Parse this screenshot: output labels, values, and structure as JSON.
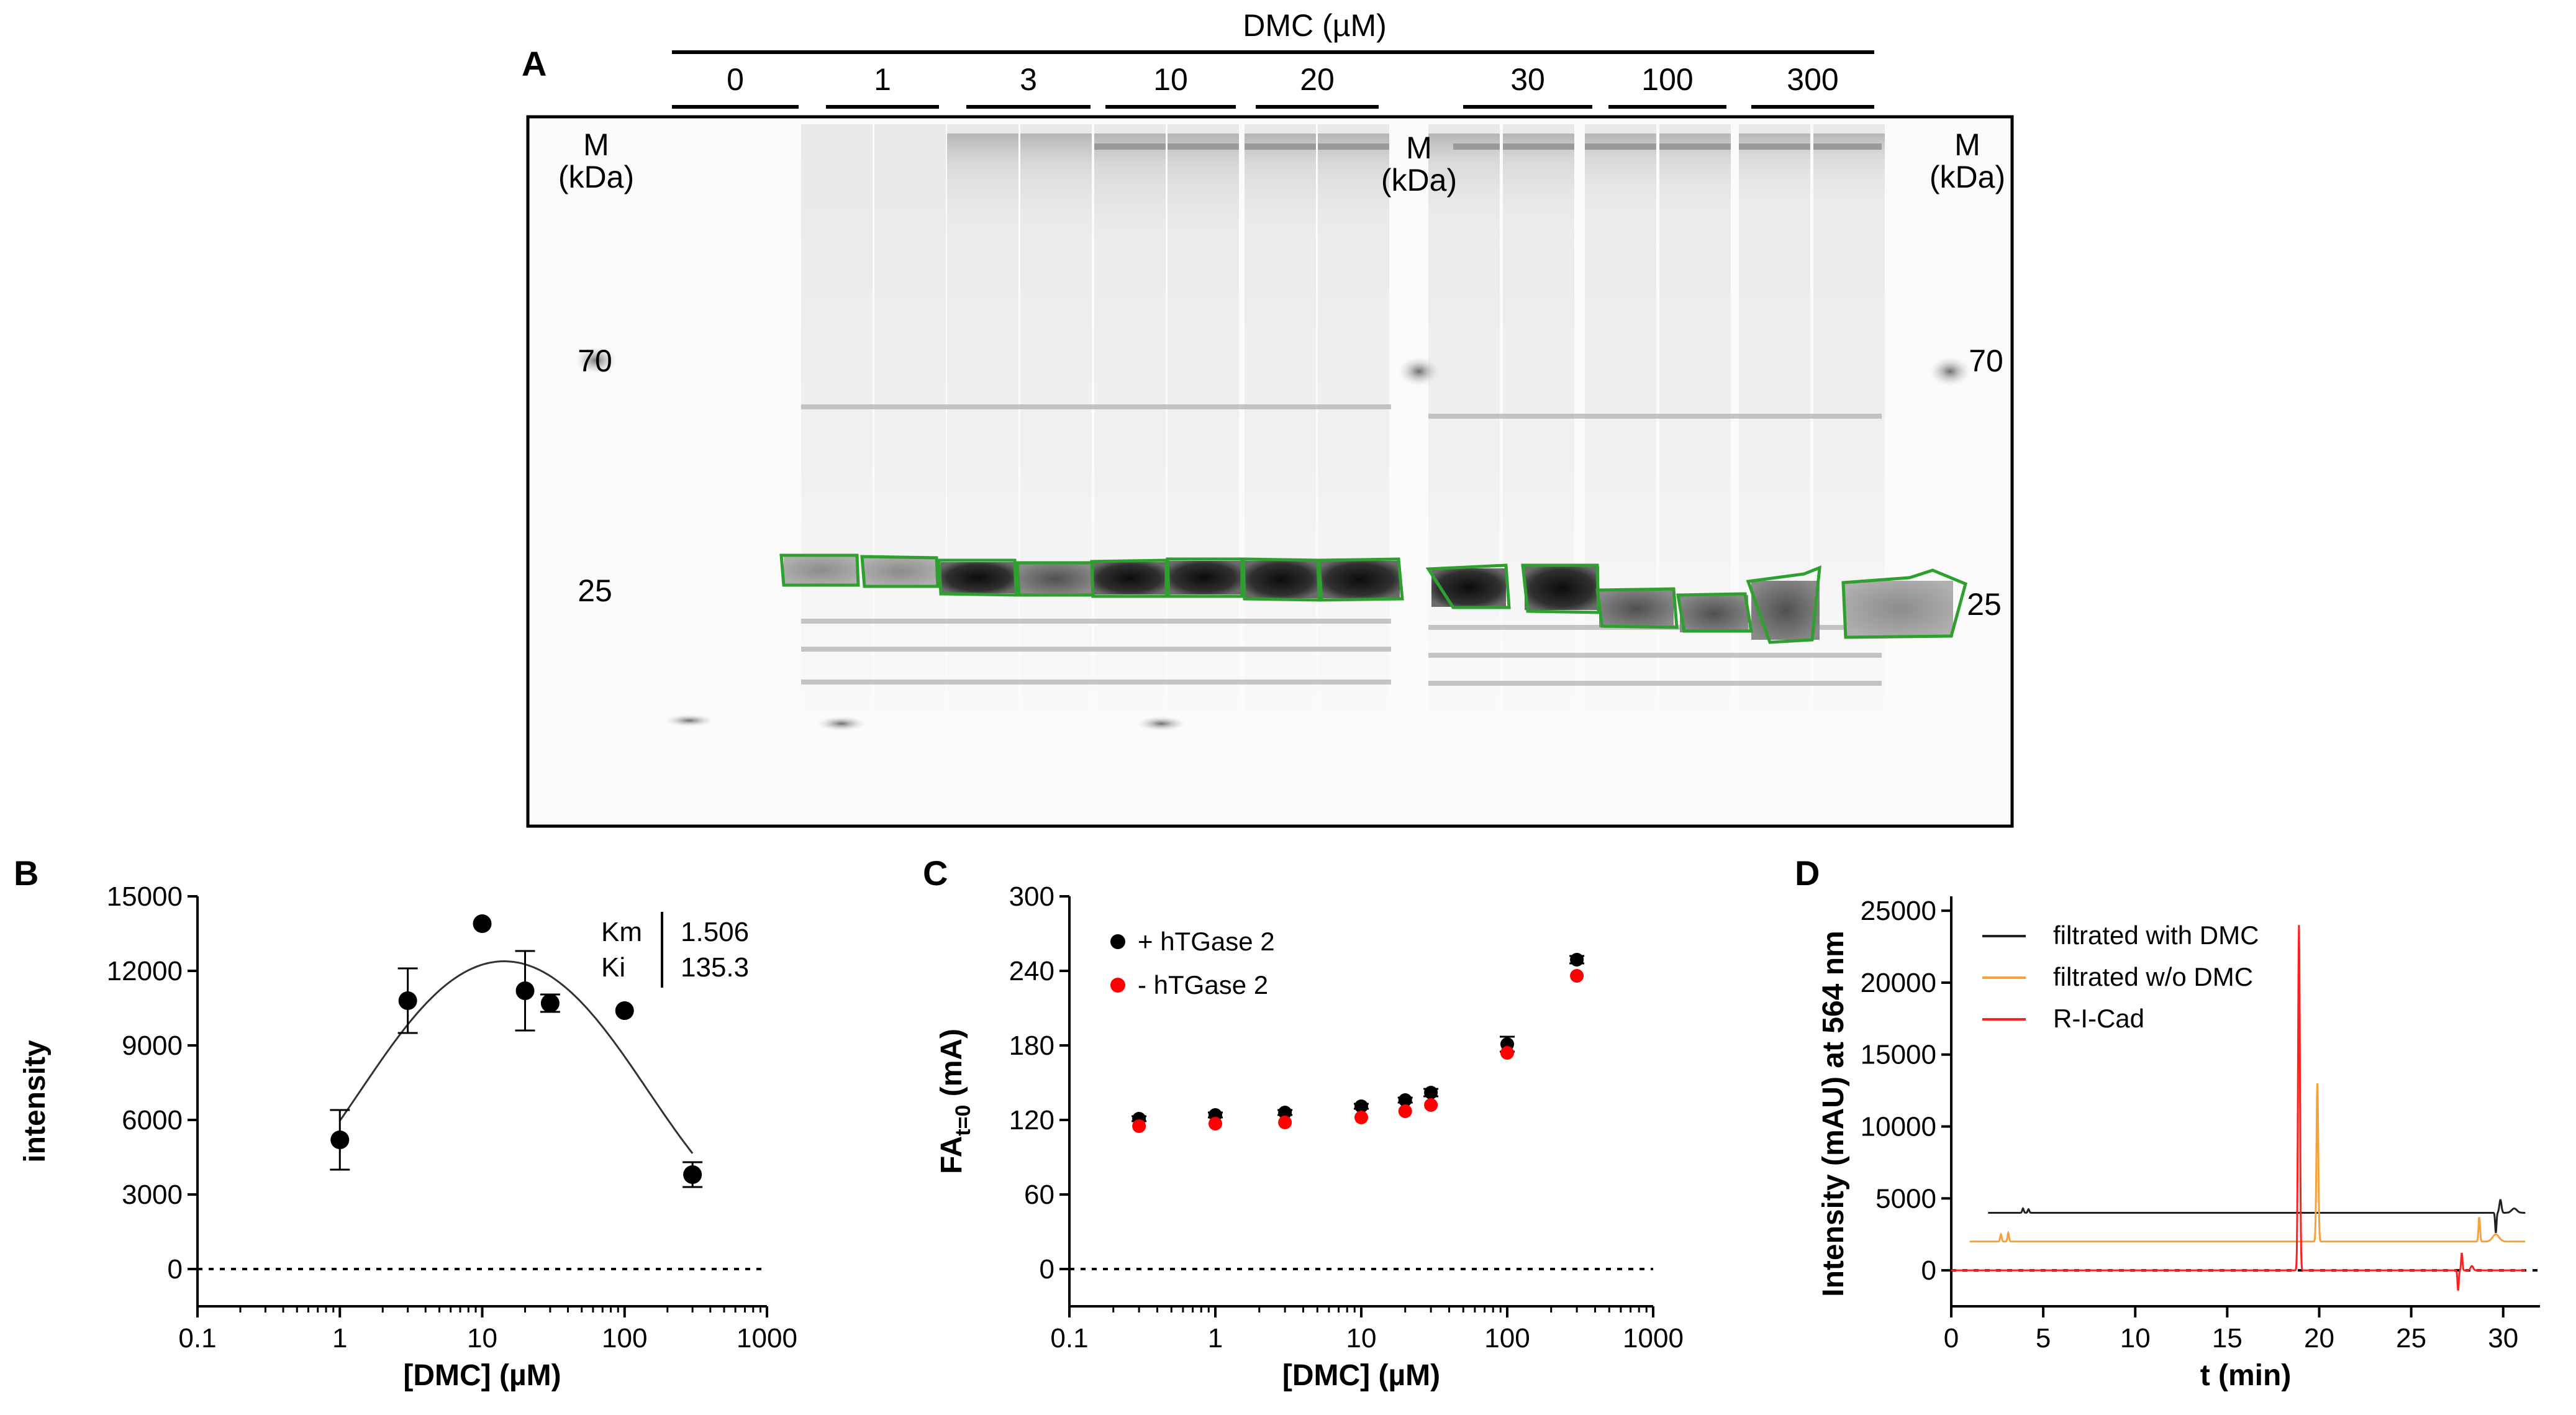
{
  "panels": {
    "a": "A",
    "b": "B",
    "c": "C",
    "d": "D"
  },
  "gel": {
    "header": "DMC (µM)",
    "lane_groups": [
      "0",
      "1",
      "3",
      "10",
      "20",
      "30",
      "100",
      "300"
    ],
    "marker_label": "M",
    "marker_unit": "(kDa)",
    "mw_70": "70",
    "mw_25": "25"
  },
  "chart_data": [
    {
      "type": "scatter",
      "panel": "B",
      "xscale": "log",
      "xlim": [
        0.1,
        1000
      ],
      "ylim": [
        -1500,
        15000
      ],
      "xticks": [
        "0.1",
        "1",
        "10",
        "100",
        "1000"
      ],
      "yticks": [
        "0",
        "3000",
        "6000",
        "9000",
        "12000",
        "15000"
      ],
      "xlabel": "[DMC] (µM)",
      "ylabel": "intensity",
      "x": [
        1,
        3,
        10,
        20,
        30,
        100,
        300
      ],
      "y": [
        5200,
        10800,
        13900,
        11200,
        10700,
        10400,
        3800
      ],
      "err": [
        1200,
        1300,
        0,
        1600,
        350,
        0,
        500
      ],
      "fit_km": 1.506,
      "fit_ki": 135.3,
      "fit_vmax": 15000,
      "zero_line": true,
      "params": [
        {
          "name": "Km",
          "value": "1.506"
        },
        {
          "name": "Ki",
          "value": "135.3"
        }
      ]
    },
    {
      "type": "scatter",
      "panel": "C",
      "xscale": "log",
      "xlim": [
        0.1,
        1000
      ],
      "ylim": [
        -30,
        300
      ],
      "xticks": [
        "0.1",
        "1",
        "10",
        "100",
        "1000"
      ],
      "yticks": [
        "0",
        "60",
        "120",
        "180",
        "240",
        "300"
      ],
      "xlabel": "[DMC] (µM)",
      "ylabel_main": "FA",
      "ylabel_sub": "t=0",
      "ylabel_tail": " (mA)",
      "zero_line": true,
      "series": [
        {
          "name": "+ hTGase 2",
          "color": "#000000",
          "x": [
            0.3,
            1,
            3,
            10,
            20,
            30,
            100,
            300
          ],
          "y": [
            121,
            124,
            126,
            131,
            136,
            142,
            181,
            249
          ],
          "err": [
            2,
            2,
            2,
            2,
            2,
            3,
            6,
            3
          ]
        },
        {
          "name": "- hTGase 2",
          "color": "#ff0000",
          "x": [
            0.3,
            1,
            3,
            10,
            20,
            30,
            100,
            300
          ],
          "y": [
            115,
            117,
            118,
            122,
            127,
            132,
            174,
            236
          ],
          "err": [
            0,
            0,
            0,
            0,
            0,
            0,
            0,
            0
          ]
        }
      ]
    },
    {
      "type": "line",
      "panel": "D",
      "xlim": [
        0,
        32
      ],
      "ylim": [
        -2500,
        26000
      ],
      "xticks": [
        "0",
        "5",
        "10",
        "15",
        "20",
        "25",
        "30"
      ],
      "yticks": [
        "0",
        "5000",
        "10000",
        "15000",
        "20000",
        "25000"
      ],
      "xlabel": "t (min)",
      "ylabel": "Intensity (mAU) at 564 nm",
      "zero_line": true,
      "series": [
        {
          "name": "filtrated with DMC",
          "color": "#222222",
          "baseline": 4000,
          "x_start": 2,
          "peaks": [
            [
              3.9,
              300,
              0.06
            ],
            [
              4.2,
              250,
              0.06
            ],
            [
              29.6,
              -1400,
              0.05
            ],
            [
              29.85,
              900,
              0.08
            ],
            [
              30.6,
              300,
              0.2
            ]
          ]
        },
        {
          "name": "filtrated w/o DMC",
          "color": "#f5a23c",
          "baseline": 2000,
          "x_start": 1,
          "peaks": [
            [
              2.7,
              500,
              0.06
            ],
            [
              3.1,
              600,
              0.06
            ],
            [
              19.9,
              11000,
              0.07
            ],
            [
              28.7,
              1700,
              0.06
            ],
            [
              29.6,
              500,
              0.25
            ]
          ]
        },
        {
          "name": "R-I-Cad",
          "color": "#ff2020",
          "baseline": 0,
          "x_start": 0,
          "peaks": [
            [
              18.9,
              24000,
              0.07
            ],
            [
              27.55,
              -1400,
              0.05
            ],
            [
              27.75,
              1200,
              0.05
            ],
            [
              28.3,
              300,
              0.1
            ]
          ]
        }
      ]
    }
  ]
}
